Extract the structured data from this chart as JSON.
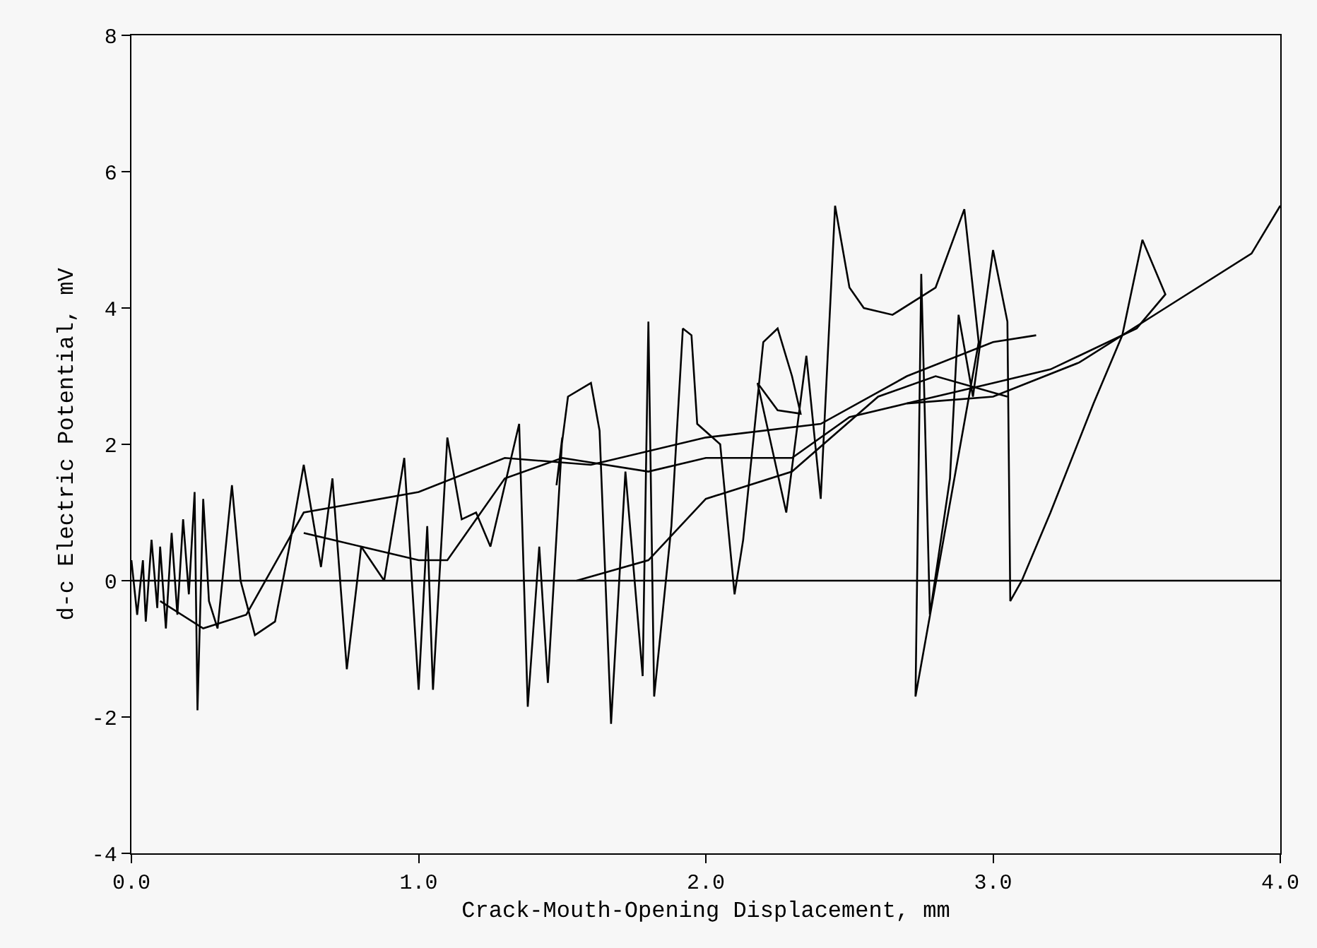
{
  "chart_data": {
    "type": "line",
    "xlabel": "Crack-Mouth-Opening Displacement, mm",
    "ylabel": "d-c Electric Potential, mV",
    "xlim": [
      0,
      4
    ],
    "ylim": [
      -4,
      8
    ],
    "xticks": [
      {
        "value": 0,
        "label": "0.0"
      },
      {
        "value": 1,
        "label": "1.0"
      },
      {
        "value": 2,
        "label": "2.0"
      },
      {
        "value": 3,
        "label": "3.0"
      },
      {
        "value": 4,
        "label": "4.0"
      }
    ],
    "yticks": [
      -4,
      -2,
      0,
      2,
      4,
      6,
      8
    ],
    "grid": false,
    "marker": "none",
    "ref_lines": [
      {
        "axis": "y",
        "value": 0,
        "color": "#000000"
      }
    ],
    "series": [
      {
        "color": "#000000",
        "x": [
          0.0,
          0.02,
          0.04,
          0.05,
          0.07,
          0.09,
          0.1,
          0.12,
          0.14,
          0.16,
          0.18,
          0.2,
          0.22,
          0.23,
          0.25,
          0.27,
          0.3,
          0.35,
          0.38,
          0.43,
          0.5,
          0.55,
          0.6,
          0.66,
          0.7,
          0.75,
          0.8,
          0.88,
          0.95,
          1.0,
          1.03,
          1.05,
          1.1,
          1.15,
          1.2,
          1.25,
          1.35,
          1.38,
          1.42,
          1.45,
          1.5,
          1.48,
          1.52,
          1.6,
          1.63,
          1.67,
          1.72,
          1.78,
          1.8,
          1.82,
          1.88,
          1.92,
          1.95,
          1.97,
          2.05,
          2.1,
          2.13,
          2.2,
          2.25,
          2.3,
          2.33,
          2.25,
          2.18,
          2.28,
          2.35,
          2.4,
          2.45,
          2.5,
          2.55,
          2.65,
          2.8,
          2.9,
          2.95,
          2.73,
          2.75,
          2.78,
          2.85,
          2.88,
          2.93,
          3.0,
          3.05,
          3.06,
          3.1,
          3.2,
          3.35,
          3.45,
          3.52,
          3.6,
          3.5,
          3.2,
          3.0,
          2.7
        ],
        "values": [
          0.3,
          -0.5,
          0.3,
          -0.6,
          0.6,
          -0.4,
          0.5,
          -0.7,
          0.7,
          -0.5,
          0.9,
          -0.2,
          1.3,
          -1.9,
          1.2,
          -0.3,
          -0.7,
          1.4,
          0.0,
          -0.8,
          -0.6,
          0.5,
          1.7,
          0.2,
          1.5,
          -1.3,
          0.5,
          0.0,
          1.8,
          -1.6,
          0.8,
          -1.6,
          2.1,
          0.9,
          1.0,
          0.5,
          2.3,
          -1.85,
          0.5,
          -1.5,
          2.1,
          1.4,
          2.7,
          2.9,
          2.2,
          -2.1,
          1.6,
          -1.4,
          3.8,
          -1.7,
          0.8,
          3.7,
          3.6,
          2.3,
          2.0,
          -0.2,
          0.6,
          3.5,
          3.7,
          3.0,
          2.45,
          2.5,
          2.9,
          1.0,
          3.3,
          1.2,
          5.5,
          4.3,
          4.0,
          3.9,
          4.3,
          5.45,
          3.5,
          -1.7,
          4.5,
          -0.5,
          1.5,
          3.9,
          2.7,
          4.85,
          3.8,
          -0.3,
          0.0,
          1.0,
          2.6,
          3.6,
          5.0,
          4.2,
          3.7,
          3.1,
          2.9,
          2.6
        ]
      },
      {
        "color": "#000000",
        "x": [
          0.6,
          0.8,
          1.0,
          1.1,
          1.3,
          1.5,
          1.8,
          2.0,
          2.3,
          2.5,
          2.7,
          3.0,
          3.3,
          3.6,
          3.9,
          4.0
        ],
        "values": [
          0.7,
          0.5,
          0.3,
          0.3,
          1.5,
          1.8,
          1.6,
          1.8,
          1.8,
          2.4,
          2.6,
          2.7,
          3.2,
          4.0,
          4.8,
          5.5
        ]
      },
      {
        "color": "#000000",
        "x": [
          0.1,
          0.25,
          0.4,
          0.6,
          1.0,
          1.3,
          1.6,
          2.0,
          2.4,
          2.7,
          3.0,
          3.15
        ],
        "values": [
          -0.3,
          -0.7,
          -0.5,
          1.0,
          1.3,
          1.8,
          1.7,
          2.1,
          2.3,
          3.0,
          3.5,
          3.6
        ]
      },
      {
        "color": "#000000",
        "x": [
          1.55,
          1.8,
          2.0,
          2.3,
          2.6,
          2.8,
          3.05
        ],
        "values": [
          0.0,
          0.3,
          1.2,
          1.6,
          2.7,
          3.0,
          2.7
        ]
      }
    ]
  }
}
